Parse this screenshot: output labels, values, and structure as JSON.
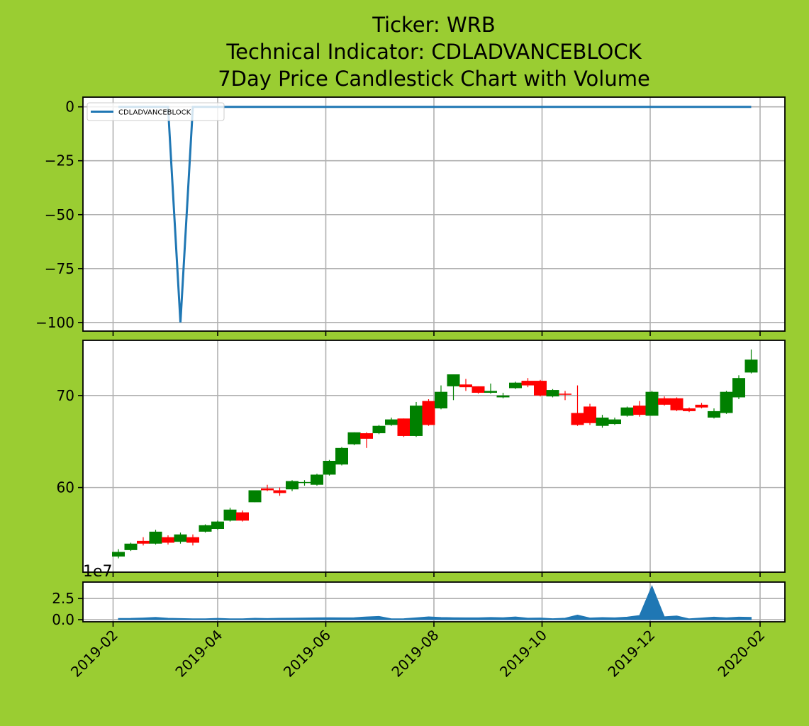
{
  "page": {
    "background": "#9acd32"
  },
  "title_lines": [
    "Ticker: WRB",
    "Technical Indicator: CDLADVANCEBLOCK",
    "7Day Price Candlestick Chart with Volume"
  ],
  "chart_data": [
    {
      "id": "indicator",
      "type": "line",
      "series": [
        {
          "name": "CDLADVANCEBLOCK",
          "color": "#1f77b4",
          "x": [
            "2019-02-04",
            "2019-02-11",
            "2019-02-18",
            "2019-02-25",
            "2019-03-04",
            "2019-03-11",
            "2019-03-18",
            "2019-03-25",
            "2019-04-01",
            "2019-04-08",
            "2019-04-15",
            "2019-04-22",
            "2019-04-29",
            "2019-05-06",
            "2019-05-13",
            "2019-05-20",
            "2019-05-27",
            "2019-06-03",
            "2019-06-10",
            "2019-06-17",
            "2019-06-24",
            "2019-07-01",
            "2019-07-08",
            "2019-07-15",
            "2019-07-22",
            "2019-07-29",
            "2019-08-05",
            "2019-08-12",
            "2019-08-19",
            "2019-08-26",
            "2019-09-02",
            "2019-09-09",
            "2019-09-16",
            "2019-09-23",
            "2019-09-30",
            "2019-10-07",
            "2019-10-14",
            "2019-10-21",
            "2019-10-28",
            "2019-11-04",
            "2019-11-11",
            "2019-11-18",
            "2019-11-25",
            "2019-12-02",
            "2019-12-09",
            "2019-12-16",
            "2019-12-23",
            "2019-12-30",
            "2020-01-06",
            "2020-01-13",
            "2020-01-20",
            "2020-01-27"
          ],
          "values": [
            0,
            0,
            0,
            0,
            0,
            -100,
            0,
            0,
            0,
            0,
            0,
            0,
            0,
            0,
            0,
            0,
            0,
            0,
            0,
            0,
            0,
            0,
            0,
            0,
            0,
            0,
            0,
            0,
            0,
            0,
            0,
            0,
            0,
            0,
            0,
            0,
            0,
            0,
            0,
            0,
            0,
            0,
            0,
            0,
            0,
            0,
            0,
            0,
            0,
            0,
            0,
            0
          ]
        }
      ],
      "xlim": [
        "2019-01-15",
        "2020-02-15"
      ],
      "ylim": [
        -104,
        4.5
      ],
      "yticks": [
        0,
        -25,
        -50,
        -75,
        -100
      ],
      "ytick_labels": [
        "0",
        "−25",
        "−50",
        "−75",
        "−100"
      ],
      "grid": true,
      "legend": "top-left"
    },
    {
      "id": "price",
      "type": "candlestick",
      "up_color": "#008000",
      "down_color": "#ff0000",
      "x": [
        "2019-02-04",
        "2019-02-11",
        "2019-02-18",
        "2019-02-25",
        "2019-03-04",
        "2019-03-11",
        "2019-03-18",
        "2019-03-25",
        "2019-04-01",
        "2019-04-08",
        "2019-04-15",
        "2019-04-22",
        "2019-04-29",
        "2019-05-06",
        "2019-05-13",
        "2019-05-20",
        "2019-05-27",
        "2019-06-03",
        "2019-06-10",
        "2019-06-17",
        "2019-06-24",
        "2019-07-01",
        "2019-07-08",
        "2019-07-15",
        "2019-07-22",
        "2019-07-29",
        "2019-08-05",
        "2019-08-12",
        "2019-08-19",
        "2019-08-26",
        "2019-09-02",
        "2019-09-09",
        "2019-09-16",
        "2019-09-23",
        "2019-09-30",
        "2019-10-07",
        "2019-10-14",
        "2019-10-21",
        "2019-10-28",
        "2019-11-04",
        "2019-11-11",
        "2019-11-18",
        "2019-11-25",
        "2019-12-02",
        "2019-12-09",
        "2019-12-16",
        "2019-12-23",
        "2019-12-30",
        "2020-01-06",
        "2020-01-13",
        "2020-01-20",
        "2020-01-27"
      ],
      "open": [
        52.5,
        53.2,
        54.2,
        53.9,
        54.6,
        54.1,
        54.6,
        55.2,
        55.5,
        56.4,
        57.3,
        58.4,
        59.9,
        59.7,
        59.8,
        60.5,
        60.3,
        61.4,
        62.5,
        64.7,
        65.9,
        65.9,
        66.8,
        67.5,
        65.6,
        69.4,
        68.6,
        71.0,
        71.2,
        71.0,
        70.3,
        69.8,
        70.8,
        71.6,
        71.6,
        69.9,
        70.2,
        68.1,
        68.8,
        66.7,
        66.9,
        67.8,
        68.9,
        67.8,
        69.7,
        69.7,
        68.6,
        69.0,
        67.6,
        68.1,
        69.8,
        72.5
      ],
      "close": [
        53.0,
        53.9,
        53.9,
        55.2,
        54.0,
        54.9,
        54.0,
        55.9,
        56.3,
        57.6,
        56.4,
        59.7,
        59.7,
        59.4,
        60.7,
        60.6,
        61.4,
        62.9,
        64.3,
        66.0,
        65.3,
        66.7,
        67.4,
        65.6,
        68.9,
        66.8,
        70.4,
        72.3,
        70.9,
        70.3,
        70.5,
        70.0,
        71.4,
        71.1,
        70.0,
        70.6,
        70.1,
        66.8,
        67.0,
        67.6,
        67.4,
        68.7,
        67.9,
        70.4,
        69.0,
        68.4,
        68.3,
        68.7,
        68.3,
        70.4,
        71.9,
        73.9
      ],
      "high": [
        53.3,
        54.0,
        54.6,
        55.4,
        54.8,
        55.1,
        54.9,
        56.0,
        56.4,
        57.8,
        57.5,
        59.7,
        60.3,
        60.0,
        60.8,
        60.8,
        61.5,
        63.0,
        64.4,
        66.0,
        66.0,
        66.8,
        67.6,
        67.5,
        69.3,
        69.6,
        71.1,
        72.3,
        71.8,
        71.0,
        71.3,
        70.3,
        71.5,
        71.9,
        71.7,
        70.7,
        70.5,
        71.1,
        69.1,
        67.9,
        67.6,
        68.8,
        69.4,
        70.5,
        69.9,
        69.8,
        68.7,
        69.2,
        68.6,
        70.5,
        72.2,
        75.0
      ],
      "low": [
        52.3,
        53.1,
        53.7,
        53.8,
        53.8,
        53.9,
        53.7,
        55.1,
        55.4,
        56.3,
        56.3,
        58.4,
        59.6,
        59.1,
        59.6,
        60.2,
        60.2,
        61.3,
        62.4,
        64.6,
        64.3,
        65.8,
        66.7,
        65.5,
        65.5,
        66.7,
        68.5,
        69.5,
        70.5,
        70.2,
        70.2,
        69.7,
        70.7,
        70.9,
        69.9,
        69.8,
        69.5,
        66.7,
        66.8,
        66.5,
        66.8,
        67.7,
        67.7,
        67.8,
        68.9,
        68.3,
        68.2,
        68.6,
        67.5,
        68.0,
        69.6,
        72.4
      ],
      "xlim": [
        "2019-01-15",
        "2020-02-15"
      ],
      "ylim": [
        50.8,
        76.0
      ],
      "yticks": [
        60,
        70
      ],
      "ytick_labels": [
        "60",
        "70"
      ],
      "grid": true
    },
    {
      "id": "volume",
      "type": "area",
      "color": "#1f77b4",
      "x": [
        "2019-02-04",
        "2019-02-11",
        "2019-02-18",
        "2019-02-25",
        "2019-03-04",
        "2019-03-11",
        "2019-03-18",
        "2019-03-25",
        "2019-04-01",
        "2019-04-08",
        "2019-04-15",
        "2019-04-22",
        "2019-04-29",
        "2019-05-06",
        "2019-05-13",
        "2019-05-20",
        "2019-05-27",
        "2019-06-03",
        "2019-06-10",
        "2019-06-17",
        "2019-06-24",
        "2019-07-01",
        "2019-07-08",
        "2019-07-15",
        "2019-07-22",
        "2019-07-29",
        "2019-08-05",
        "2019-08-12",
        "2019-08-19",
        "2019-08-26",
        "2019-09-02",
        "2019-09-09",
        "2019-09-16",
        "2019-09-23",
        "2019-09-30",
        "2019-10-07",
        "2019-10-14",
        "2019-10-21",
        "2019-10-28",
        "2019-11-04",
        "2019-11-11",
        "2019-11-18",
        "2019-11-25",
        "2019-12-02",
        "2019-12-09",
        "2019-12-16",
        "2019-12-23",
        "2019-12-30",
        "2020-01-06",
        "2020-01-13",
        "2020-01-20",
        "2020-01-27"
      ],
      "values": [
        0.15,
        0.16,
        0.2,
        0.27,
        0.17,
        0.14,
        0.1,
        0.1,
        0.16,
        0.1,
        0.11,
        0.17,
        0.14,
        0.17,
        0.18,
        0.2,
        0.22,
        0.24,
        0.22,
        0.24,
        0.33,
        0.39,
        0.1,
        0.12,
        0.22,
        0.34,
        0.26,
        0.24,
        0.22,
        0.22,
        0.26,
        0.24,
        0.33,
        0.18,
        0.2,
        0.12,
        0.18,
        0.55,
        0.2,
        0.25,
        0.22,
        0.3,
        0.5,
        4.0,
        0.35,
        0.45,
        0.1,
        0.2,
        0.3,
        0.22,
        0.3,
        0.28
      ],
      "xlim": [
        "2019-01-15",
        "2020-02-15"
      ],
      "ylim": [
        -0.25,
        4.45
      ],
      "yticks": [
        0,
        2.5
      ],
      "ytick_labels": [
        "0.0",
        "2.5"
      ],
      "offset_text": "1e7",
      "grid": true
    }
  ],
  "x_axis": {
    "ticks": [
      "2019-02-01",
      "2019-04-01",
      "2019-06-01",
      "2019-08-01",
      "2019-10-01",
      "2019-12-01",
      "2020-02-01"
    ],
    "tick_labels": [
      "2019-02",
      "2019-04",
      "2019-06",
      "2019-08",
      "2019-10",
      "2019-12",
      "2020-02"
    ]
  }
}
